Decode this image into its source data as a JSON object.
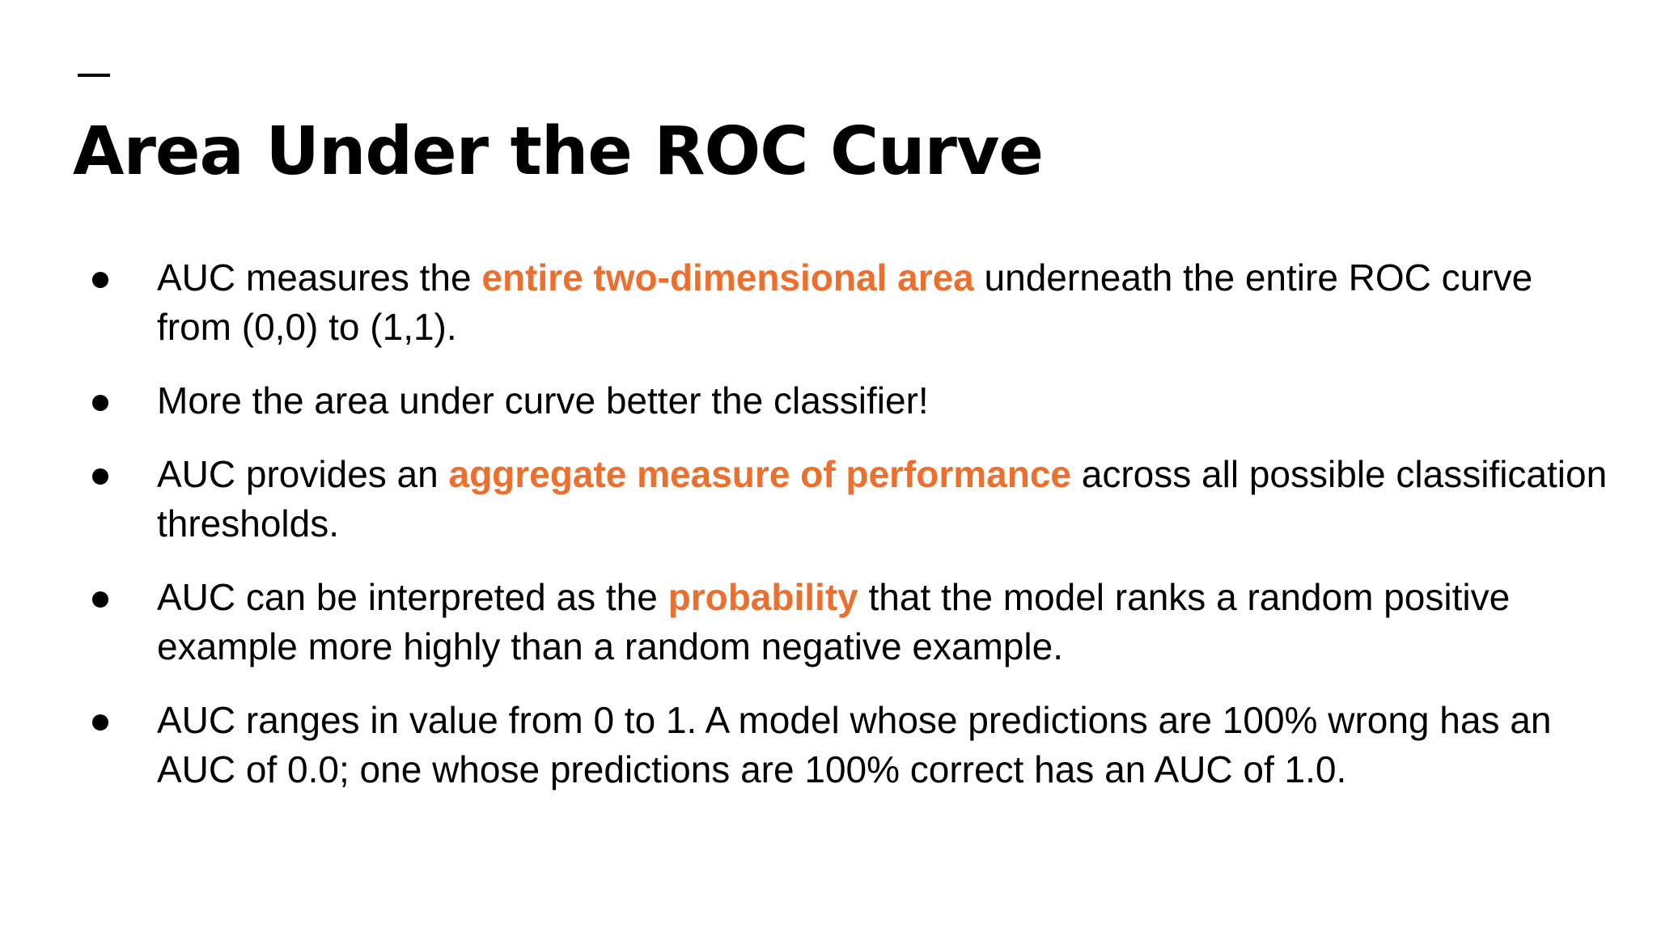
{
  "slide": {
    "title": "Area Under the ROC Curve",
    "accent_color": "#ec6f2e",
    "bullets": [
      {
        "before": "AUC measures the ",
        "highlight": "entire two-dimensional area",
        "after": " underneath the entire ROC curve from (0,0) to (1,1)."
      },
      {
        "before": "More the area under curve better the classifier!",
        "highlight": "",
        "after": ""
      },
      {
        "before": "AUC provides an ",
        "highlight": "aggregate measure of performance",
        "after": " across all possible classification thresholds."
      },
      {
        "before": "AUC can be interpreted as the ",
        "highlight": "probability",
        "after": " that the model ranks a random positive example more highly than a random negative example."
      },
      {
        "before": "AUC ranges in value from 0 to 1. A model whose predictions are 100% wrong has an AUC of 0.0; one whose predictions are 100% correct has an AUC of 1.0.",
        "highlight": "",
        "after": ""
      }
    ]
  }
}
